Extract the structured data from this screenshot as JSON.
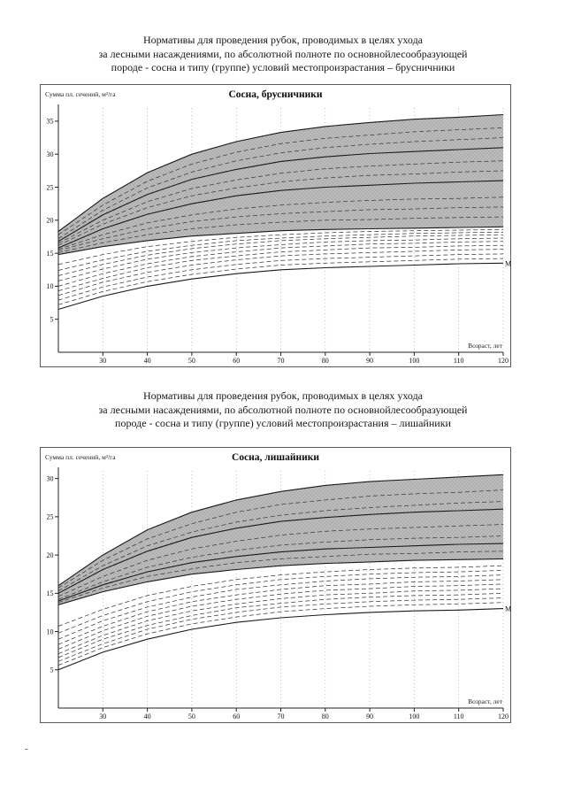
{
  "page": {
    "artifact": "-"
  },
  "style": {
    "band_fill": "#bdbdbd",
    "band_dot": "#8a8a8a",
    "curve_color": "#1a1a1a",
    "dashed_color": "#3a3a3a",
    "grid_color": "#9a9a9a"
  },
  "headings": [
    {
      "line1": "Нормативы для проведения рубок, проводимых в целях ухода",
      "line2": "за лесными насаждениями, по абсолютной полноте по основнойлесообразующей",
      "line3": "породе - сосна и типу (группе) условий местопроизрастания – брусничники"
    },
    {
      "line1": "Нормативы для проведения рубок, проводимых в целях ухода",
      "line2": "за лесными насаждениями, по абсолютной полноте по основнойлесообразующей",
      "line3": "породе - сосна и типу (группе) условий местопроизрастания – лишайники"
    }
  ],
  "chart_data": [
    {
      "type": "line",
      "title": "Сосна, брусничники",
      "ylabel": "Сумма пл. сечений, м²/га",
      "xlabel": "Возраст, лет",
      "x": [
        20,
        30,
        40,
        50,
        60,
        70,
        80,
        90,
        100,
        110,
        120
      ],
      "x_ticks": [
        30,
        40,
        50,
        60,
        70,
        80,
        90,
        100,
        110,
        120
      ],
      "y_ticks": [
        5,
        10,
        15,
        20,
        25,
        30,
        35
      ],
      "xlim": [
        20,
        120
      ],
      "ylim": [
        0,
        37
      ],
      "legend": "off",
      "grid": "dotted-vertical",
      "band": {
        "upper": [
          18.3,
          23.3,
          27.2,
          30.0,
          31.9,
          33.3,
          34.2,
          34.8,
          35.3,
          35.6,
          36.0
        ],
        "lower": [
          14.8,
          16.0,
          16.9,
          17.6,
          18.0,
          18.4,
          18.6,
          18.7,
          18.8,
          18.9,
          19.0
        ]
      },
      "solid_curves": [
        {
          "label": "",
          "values": [
            16.8,
            20.8,
            23.9,
            26.2,
            27.7,
            28.9,
            29.6,
            30.1,
            30.4,
            30.7,
            31.0
          ]
        },
        {
          "label": "",
          "values": [
            15.8,
            18.7,
            20.9,
            22.5,
            23.7,
            24.5,
            25.0,
            25.3,
            25.6,
            25.8,
            26.0
          ]
        },
        {
          "label": "М",
          "values": [
            6.5,
            8.5,
            10.0,
            11.1,
            11.9,
            12.5,
            12.8,
            13.0,
            13.2,
            13.4,
            13.5
          ]
        }
      ],
      "dashed_curves": [
        [
          15.1,
          16.6,
          17.8,
          18.7,
          19.3,
          19.7,
          20.0,
          20.1,
          20.3,
          20.4,
          20.5
        ],
        [
          15.4,
          17.2,
          18.7,
          19.8,
          20.5,
          21.0,
          21.3,
          21.6,
          21.7,
          21.9,
          22.0
        ],
        [
          15.6,
          17.8,
          19.6,
          20.8,
          21.7,
          22.3,
          22.7,
          23.0,
          23.2,
          23.3,
          23.5
        ],
        [
          16.2,
          19.4,
          21.9,
          23.7,
          24.9,
          25.8,
          26.4,
          26.8,
          27.0,
          27.3,
          27.5
        ],
        [
          16.5,
          20.0,
          22.8,
          24.8,
          26.1,
          27.1,
          27.8,
          28.2,
          28.5,
          28.8,
          29.0
        ],
        [
          17.2,
          21.5,
          24.9,
          27.3,
          29.0,
          30.2,
          31.0,
          31.5,
          31.9,
          32.2,
          32.5
        ],
        [
          17.8,
          22.3,
          25.9,
          28.5,
          30.3,
          31.6,
          32.4,
          32.9,
          33.4,
          33.7,
          34.0
        ],
        [
          7.2,
          9.2,
          10.7,
          11.8,
          12.6,
          13.2,
          13.5,
          13.7,
          13.9,
          14.1,
          14.2
        ],
        [
          7.9,
          9.9,
          11.4,
          12.5,
          13.3,
          13.9,
          14.2,
          14.4,
          14.6,
          14.8,
          14.9
        ],
        [
          8.6,
          10.6,
          12.1,
          13.2,
          14.0,
          14.6,
          14.9,
          15.1,
          15.3,
          15.5,
          15.6
        ],
        [
          9.3,
          11.2,
          12.8,
          13.9,
          14.6,
          15.2,
          15.5,
          15.8,
          15.9,
          16.1,
          16.2
        ],
        [
          10.0,
          11.9,
          13.4,
          14.5,
          15.2,
          15.8,
          16.1,
          16.4,
          16.5,
          16.7,
          16.8
        ],
        [
          10.8,
          12.6,
          14.1,
          15.1,
          15.8,
          16.3,
          16.7,
          16.9,
          17.0,
          17.2,
          17.3
        ],
        [
          11.6,
          13.3,
          14.7,
          15.7,
          16.4,
          16.9,
          17.2,
          17.4,
          17.6,
          17.7,
          17.8
        ],
        [
          12.4,
          14.0,
          15.3,
          16.2,
          16.9,
          17.3,
          17.6,
          17.8,
          18.0,
          18.1,
          18.2
        ],
        [
          13.3,
          14.8,
          16.0,
          16.8,
          17.4,
          17.8,
          18.1,
          18.3,
          18.4,
          18.5,
          18.6
        ]
      ]
    },
    {
      "type": "line",
      "title": "Сосна, лишайники",
      "ylabel": "Сумма пл. сечений, м²/га",
      "xlabel": "Возраст, лет",
      "x": [
        20,
        30,
        40,
        50,
        60,
        70,
        80,
        90,
        100,
        110,
        120
      ],
      "x_ticks": [
        30,
        40,
        50,
        60,
        70,
        80,
        90,
        100,
        110,
        120
      ],
      "y_ticks": [
        5,
        10,
        15,
        20,
        25,
        30
      ],
      "xlim": [
        20,
        120
      ],
      "ylim": [
        0,
        31
      ],
      "legend": "off",
      "grid": "dotted-vertical",
      "band": {
        "upper": [
          16.0,
          20.0,
          23.3,
          25.6,
          27.2,
          28.3,
          29.1,
          29.6,
          29.9,
          30.2,
          30.5
        ],
        "lower": [
          13.5,
          15.2,
          16.5,
          17.5,
          18.1,
          18.6,
          18.9,
          19.1,
          19.3,
          19.4,
          19.5
        ]
      },
      "solid_curves": [
        {
          "label": "",
          "values": [
            15.0,
            18.1,
            20.5,
            22.3,
            23.5,
            24.4,
            24.9,
            25.3,
            25.6,
            25.8,
            26.0
          ]
        },
        {
          "label": "",
          "values": [
            14.0,
            16.1,
            17.8,
            19.0,
            19.8,
            20.4,
            20.8,
            21.0,
            21.2,
            21.4,
            21.5
          ]
        },
        {
          "label": "М",
          "values": [
            5.0,
            7.3,
            9.0,
            10.3,
            11.2,
            11.8,
            12.2,
            12.5,
            12.7,
            12.8,
            13.0
          ]
        }
      ],
      "dashed_curves": [
        [
          13.8,
          15.7,
          17.2,
          18.2,
          19.0,
          19.5,
          19.8,
          20.1,
          20.2,
          20.4,
          20.5
        ],
        [
          14.2,
          16.5,
          18.4,
          19.7,
          20.6,
          21.3,
          21.7,
          22.0,
          22.2,
          22.3,
          22.5
        ],
        [
          14.6,
          17.2,
          19.3,
          20.8,
          21.8,
          22.6,
          23.1,
          23.4,
          23.6,
          23.8,
          24.0
        ],
        [
          15.3,
          18.6,
          21.2,
          23.0,
          24.3,
          25.2,
          25.8,
          26.2,
          26.5,
          26.8,
          27.0
        ],
        [
          15.7,
          19.3,
          22.1,
          24.1,
          25.6,
          26.6,
          27.2,
          27.7,
          28.0,
          28.2,
          28.5
        ],
        [
          5.6,
          7.9,
          9.7,
          11.0,
          11.9,
          12.6,
          13.0,
          13.3,
          13.5,
          13.6,
          13.8
        ],
        [
          6.1,
          8.4,
          10.3,
          11.6,
          12.5,
          13.2,
          13.6,
          13.9,
          14.1,
          14.2,
          14.4
        ],
        [
          6.6,
          9.0,
          10.8,
          12.1,
          13.1,
          13.7,
          14.2,
          14.5,
          14.7,
          14.8,
          15.0
        ],
        [
          7.1,
          9.5,
          11.4,
          12.7,
          13.6,
          14.3,
          14.8,
          15.0,
          15.3,
          15.4,
          15.6
        ],
        [
          7.7,
          10.1,
          12.0,
          13.3,
          14.2,
          14.9,
          15.4,
          15.6,
          15.9,
          16.0,
          16.2
        ],
        [
          8.3,
          10.7,
          12.6,
          13.9,
          14.8,
          15.5,
          16.0,
          16.2,
          16.5,
          16.6,
          16.8
        ],
        [
          9.0,
          11.4,
          13.2,
          14.5,
          15.5,
          16.1,
          16.6,
          16.9,
          17.1,
          17.2,
          17.4
        ],
        [
          9.8,
          12.1,
          13.9,
          15.2,
          16.1,
          16.8,
          17.2,
          17.5,
          17.7,
          17.8,
          18.0
        ],
        [
          10.7,
          12.9,
          14.7,
          15.9,
          16.8,
          17.4,
          17.8,
          18.1,
          18.3,
          18.4,
          18.6
        ]
      ]
    }
  ]
}
